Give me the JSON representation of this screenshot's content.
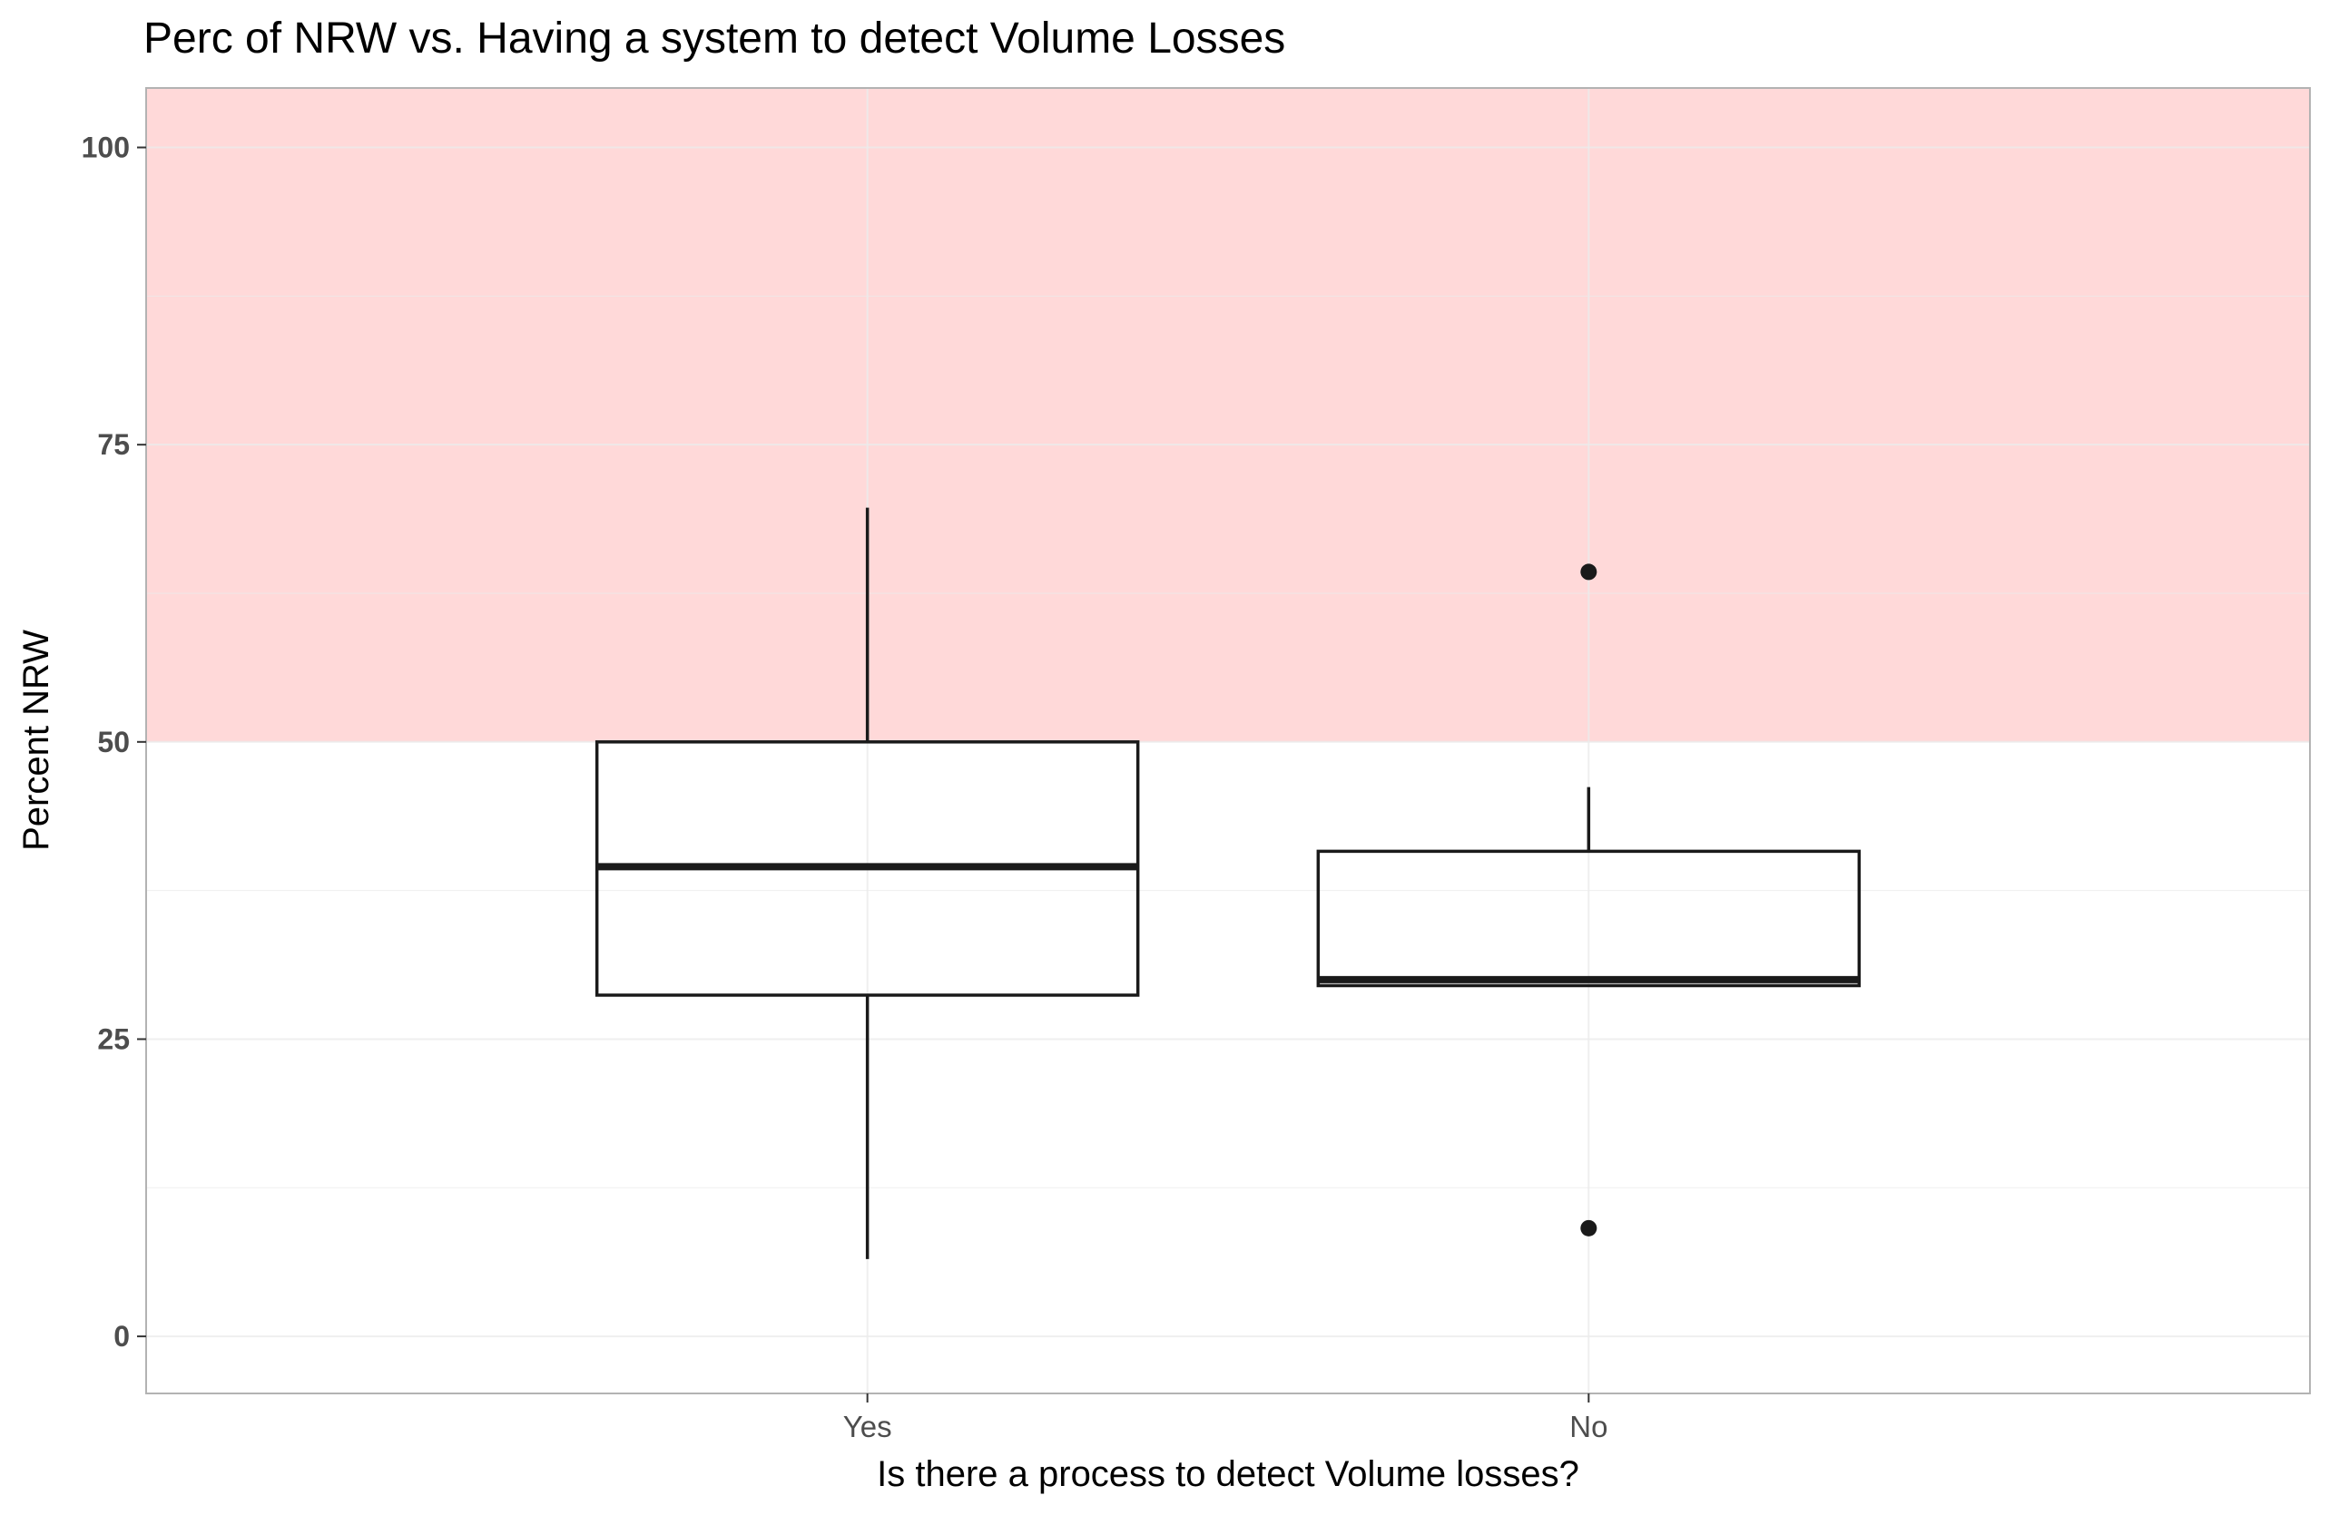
{
  "chart_data": {
    "type": "boxplot",
    "title": "Perc of NRW vs. Having a system to detect Volume Losses",
    "xlabel": "Is there a process to detect Volume losses?",
    "ylabel": "Percent NRW",
    "categories": [
      "Yes",
      "No"
    ],
    "ylim": [
      -4.8,
      105
    ],
    "yticks": [
      0,
      25,
      50,
      75,
      100
    ],
    "grid": true,
    "shaded_region": {
      "y_from": 50,
      "y_to": 105,
      "color": "#ffd9d9"
    },
    "boxes": [
      {
        "category": "Yes",
        "whisker_low": 6.5,
        "q1": 28.7,
        "median": 39.5,
        "q3": 50.0,
        "whisker_high": 69.7,
        "outliers": []
      },
      {
        "category": "No",
        "whisker_low": 29.5,
        "q1": 29.5,
        "median": 30.0,
        "q3": 40.8,
        "whisker_high": 46.2,
        "outliers": [
          64.3,
          9.1
        ]
      }
    ]
  }
}
